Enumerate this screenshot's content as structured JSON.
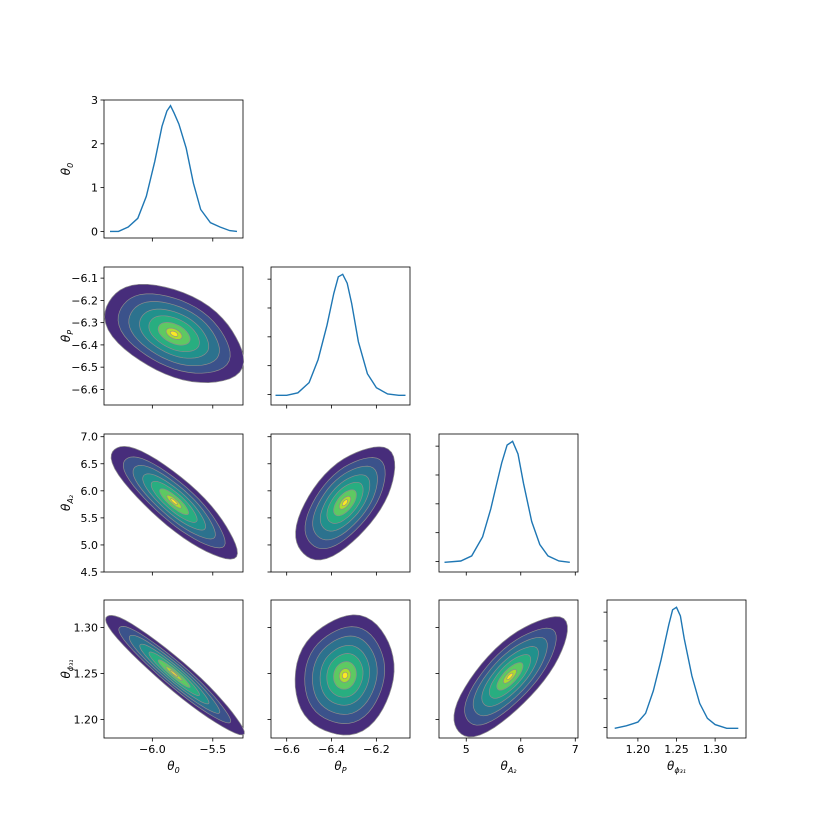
{
  "chart_data": {
    "type": "corner",
    "grid": false,
    "colors": {
      "line": "#1f77b4",
      "contours": [
        "#472d7b",
        "#3b528b",
        "#2c728e",
        "#21918c",
        "#28ae80",
        "#5ec962",
        "#addc30",
        "#fde725"
      ],
      "contour_edge": "#8c8c8c"
    },
    "parameters": [
      {
        "key": "theta0",
        "label": "θ",
        "sub": "0",
        "range": [
          -6.4,
          -5.25
        ],
        "ticks": [
          -6.0,
          -5.5
        ],
        "tick_labels": [
          "−6.0",
          "−5.5"
        ]
      },
      {
        "key": "thetaP",
        "label": "θ",
        "sub": "P",
        "range": [
          -6.67,
          -6.05
        ],
        "ticks": [
          -6.6,
          -6.4,
          -6.2
        ],
        "tick_labels": [
          "−6.6",
          "−6.4",
          "−6.2"
        ]
      },
      {
        "key": "thetaA2",
        "label": "θ",
        "sub": "A₂",
        "range": [
          4.5,
          7.05
        ],
        "ticks": [
          5,
          6,
          7
        ],
        "tick_labels": [
          "5",
          "6",
          "7"
        ]
      },
      {
        "key": "thetaPhi31",
        "label": "θ",
        "sub": "ϕ₃₁",
        "range": [
          1.16,
          1.34
        ],
        "ticks": [
          1.2,
          1.25,
          1.3
        ],
        "tick_labels": [
          "1.20",
          "1.25",
          "1.30"
        ]
      }
    ],
    "y_axes": [
      {
        "row": 0,
        "range": [
          -0.15,
          3.0
        ],
        "ticks": [
          0,
          1,
          2,
          3
        ],
        "tick_labels": [
          "0",
          "1",
          "2",
          "3"
        ]
      },
      {
        "row": 1,
        "range": [
          -6.67,
          -6.05
        ],
        "ticks": [
          -6.6,
          -6.5,
          -6.4,
          -6.3,
          -6.2,
          -6.1
        ],
        "tick_labels": [
          "−6.6",
          "−6.5",
          "−6.4",
          "−6.3",
          "−6.2",
          "−6.1"
        ]
      },
      {
        "row": 2,
        "range": [
          4.5,
          7.05
        ],
        "ticks": [
          4.5,
          5.0,
          5.5,
          6.0,
          6.5,
          7.0
        ],
        "tick_labels": [
          "4.5",
          "5.0",
          "5.5",
          "6.0",
          "6.5",
          "7.0"
        ]
      },
      {
        "row": 3,
        "range": [
          1.18,
          1.33
        ],
        "ticks": [
          1.2,
          1.25,
          1.3
        ],
        "tick_labels": [
          "1.20",
          "1.25",
          "1.30"
        ]
      }
    ],
    "marginals": [
      {
        "param": 0,
        "x": [
          -6.35,
          -6.28,
          -6.2,
          -6.12,
          -6.05,
          -5.98,
          -5.92,
          -5.88,
          -5.85,
          -5.82,
          -5.78,
          -5.72,
          -5.66,
          -5.6,
          -5.52,
          -5.44,
          -5.36,
          -5.3
        ],
        "y": [
          0.0,
          0.0,
          0.1,
          0.3,
          0.8,
          1.6,
          2.4,
          2.75,
          2.87,
          2.7,
          2.45,
          1.9,
          1.1,
          0.5,
          0.2,
          0.1,
          0.02,
          0.0
        ]
      },
      {
        "param": 1,
        "x": [
          -6.65,
          -6.6,
          -6.55,
          -6.5,
          -6.46,
          -6.42,
          -6.39,
          -6.37,
          -6.35,
          -6.33,
          -6.31,
          -6.28,
          -6.24,
          -6.2,
          -6.15,
          -6.1,
          -6.07
        ],
        "y": [
          0.0,
          0.0,
          0.02,
          0.1,
          0.28,
          0.55,
          0.8,
          0.93,
          0.95,
          0.88,
          0.72,
          0.42,
          0.17,
          0.06,
          0.01,
          0.0,
          0.0
        ]
      },
      {
        "param": 2,
        "x": [
          4.6,
          4.9,
          5.1,
          5.3,
          5.45,
          5.55,
          5.65,
          5.75,
          5.85,
          5.95,
          6.05,
          6.2,
          6.35,
          6.5,
          6.7,
          6.9
        ],
        "y": [
          0.0,
          0.01,
          0.05,
          0.2,
          0.42,
          0.6,
          0.78,
          0.92,
          0.95,
          0.85,
          0.62,
          0.32,
          0.14,
          0.05,
          0.01,
          0.0
        ]
      },
      {
        "param": 3,
        "x": [
          1.17,
          1.185,
          1.2,
          1.21,
          1.22,
          1.23,
          1.24,
          1.245,
          1.25,
          1.255,
          1.26,
          1.27,
          1.28,
          1.29,
          1.3,
          1.315,
          1.33
        ],
        "y": [
          0.0,
          0.02,
          0.05,
          0.12,
          0.3,
          0.55,
          0.83,
          0.95,
          0.97,
          0.9,
          0.72,
          0.42,
          0.2,
          0.08,
          0.03,
          0.0,
          0.0
        ]
      }
    ],
    "joint": [
      {
        "row": 1,
        "col": 0,
        "center": [
          -5.82,
          -6.35
        ],
        "spread": [
          0.22,
          0.085
        ],
        "rho": -0.45
      },
      {
        "row": 2,
        "col": 0,
        "center": [
          -5.82,
          5.8
        ],
        "spread": [
          0.2,
          0.4
        ],
        "rho": -0.85
      },
      {
        "row": 2,
        "col": 1,
        "center": [
          -6.34,
          5.78
        ],
        "spread": [
          0.085,
          0.4
        ],
        "rho": 0.6
      },
      {
        "row": 3,
        "col": 0,
        "center": [
          -5.82,
          1.25
        ],
        "spread": [
          0.22,
          0.025
        ],
        "rho": -0.95
      },
      {
        "row": 3,
        "col": 1,
        "center": [
          -6.34,
          1.248
        ],
        "spread": [
          0.085,
          0.025
        ],
        "rho": 0.1
      },
      {
        "row": 3,
        "col": 2,
        "center": [
          5.8,
          1.247
        ],
        "spread": [
          0.4,
          0.025
        ],
        "rho": 0.75
      }
    ],
    "contour_levels": [
      2.6,
      2.1,
      1.7,
      1.3,
      0.95,
      0.6,
      0.3
    ]
  }
}
